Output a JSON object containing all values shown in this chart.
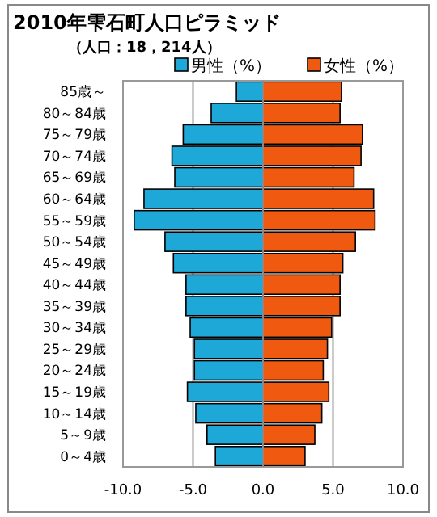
{
  "chart_data": {
    "type": "bar",
    "orientation": "horizontal",
    "stacked": true,
    "title": "2010年雫石町人口ピラミッド",
    "subtitle": "（人口：18，214人）",
    "categories": [
      "85歳～",
      "80～84歳",
      "75～79歳",
      "70～74歳",
      "65～69歳",
      "60～64歳",
      "55～59歳",
      "50～54歳",
      "45～49歳",
      "40～44歳",
      "35～39歳",
      "30～34歳",
      "25～29歳",
      "20～24歳",
      "15～19歳",
      "10～14歳",
      "5～9歳",
      "0～4歳"
    ],
    "series": [
      {
        "name": "男性（%）",
        "color": "#1ea8d8",
        "values": [
          -1.9,
          -3.7,
          -5.7,
          -6.5,
          -6.3,
          -8.5,
          -9.2,
          -7.0,
          -6.4,
          -5.5,
          -5.5,
          -5.2,
          -4.9,
          -4.9,
          -5.4,
          -4.8,
          -4.0,
          -3.4
        ]
      },
      {
        "name": "女性（%）",
        "color": "#f05a10",
        "values": [
          5.6,
          5.5,
          7.1,
          7.0,
          6.5,
          7.9,
          8.0,
          6.6,
          5.7,
          5.5,
          5.5,
          4.9,
          4.6,
          4.3,
          4.7,
          4.2,
          3.7,
          3.0
        ]
      }
    ],
    "xlim": [
      -10,
      10
    ],
    "xticks": [
      {
        "value": -10,
        "label": "-10.0"
      },
      {
        "value": -5,
        "label": "-5.0"
      },
      {
        "value": 0,
        "label": "0.0"
      },
      {
        "value": 5,
        "label": "5.0"
      },
      {
        "value": 10,
        "label": "10.0"
      }
    ],
    "grid": "x",
    "legend": "top right"
  }
}
